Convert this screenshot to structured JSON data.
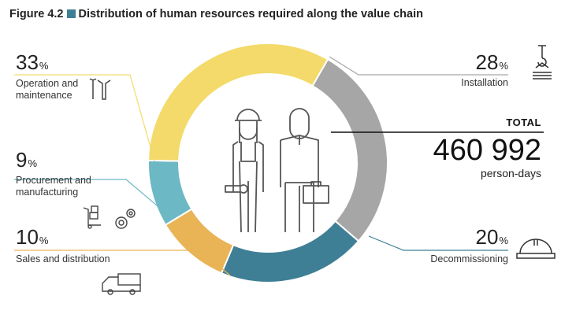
{
  "title": {
    "figure": "Figure 4.2",
    "text": "Distribution of human resources required along the value chain"
  },
  "total": {
    "label": "TOTAL",
    "value": "460 992",
    "unit": "person-days"
  },
  "chart_data": {
    "type": "pie",
    "variant": "donut",
    "title": "Distribution of human resources required along the value chain",
    "slices": [
      {
        "name": "Installation",
        "value": 28,
        "color": "#a6a6a6",
        "pct_label": "28"
      },
      {
        "name": "Decommissioning",
        "value": 20,
        "color": "#3f7f96",
        "pct_label": "20"
      },
      {
        "name": "Sales and distribution",
        "value": 10,
        "color": "#e9b455",
        "pct_label": "10"
      },
      {
        "name": "Procurement and manufacturing",
        "value": 9,
        "color": "#6cb8c4",
        "pct_label": "9"
      },
      {
        "name": "Operation and maintenance",
        "value": 33,
        "color": "#f3da6a",
        "pct_label": "33"
      }
    ],
    "unit": "%"
  }
}
